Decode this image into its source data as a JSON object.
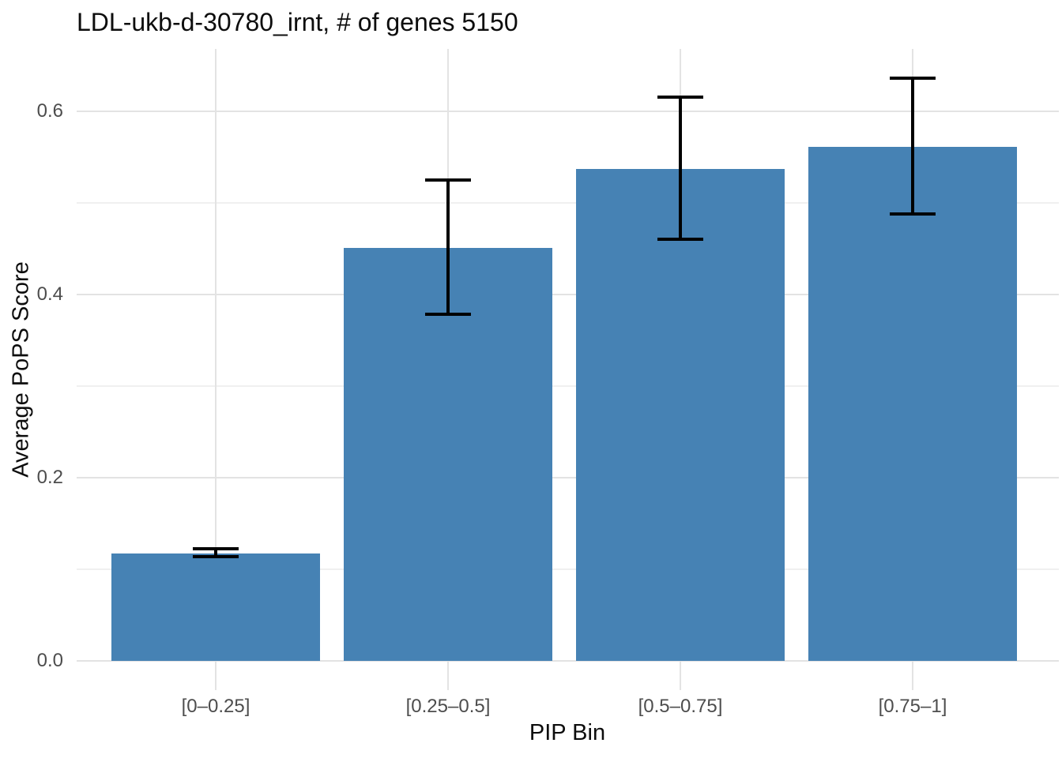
{
  "title": "LDL-ukb-d-30780_irnt, # of genes 5150",
  "chart_data": {
    "type": "bar",
    "title": "LDL-ukb-d-30780_irnt, # of genes 5150",
    "xlabel": "PIP Bin",
    "ylabel": "Average PoPS Score",
    "categories": [
      "[0–0.25]",
      "[0.25–0.5]",
      "[0.5–0.75]",
      "[0.75–1]"
    ],
    "values": [
      0.117,
      0.451,
      0.537,
      0.561
    ],
    "error_low": [
      0.114,
      0.378,
      0.46,
      0.488
    ],
    "error_high": [
      0.122,
      0.525,
      0.615,
      0.636
    ],
    "yticks": [
      0,
      0.2,
      0.4,
      0.6
    ],
    "ytick_labels": [
      "0.0",
      "0.2",
      "0.4",
      "0.6"
    ],
    "minor_yticks": [
      0.1,
      0.3,
      0.5
    ],
    "ylim": [
      -0.032,
      0.668
    ],
    "grid": true,
    "legend_position": "none",
    "colors": {
      "bar_fill": "#4682b4",
      "error_bar": "#000000",
      "grid_major": "#e3e3e3",
      "grid_minor": "#f0f0f0",
      "tick_label": "#4d4d4d",
      "text": "#0d0d0d",
      "background": "#ffffff"
    }
  }
}
